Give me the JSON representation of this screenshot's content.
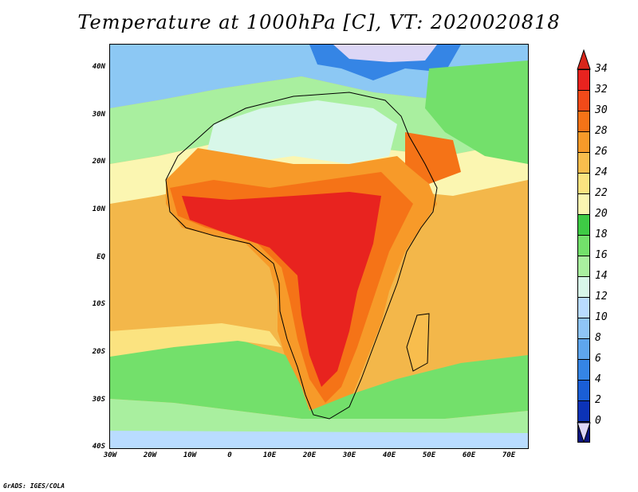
{
  "title": "Temperature at 1000hPa [C], VT: 2020020818",
  "footer": "GrADS: IGES/COLA",
  "axes": {
    "lat_labels": [
      "40N",
      "30N",
      "20N",
      "10N",
      "EQ",
      "10S",
      "20S",
      "30S",
      "40S"
    ],
    "lon_labels": [
      "30W",
      "20W",
      "10W",
      "0",
      "10E",
      "20E",
      "30E",
      "40E",
      "50E",
      "60E",
      "70E"
    ]
  },
  "colorbar": {
    "labels": [
      "34",
      "32",
      "30",
      "28",
      "26",
      "24",
      "22",
      "20",
      "18",
      "16",
      "14",
      "12",
      "10",
      "8",
      "6",
      "4",
      "2",
      "0"
    ],
    "colors": [
      "#e8231f",
      "#f24a19",
      "#f57317",
      "#f79a29",
      "#f8bd4d",
      "#fbe380",
      "#fbf6b1",
      "#3ecb45",
      "#73e06b",
      "#a9ef9f",
      "#d8f7e9",
      "#b9dcff",
      "#8fc5f6",
      "#5ea6ee",
      "#3585e5",
      "#1a5ed6",
      "#0c33b7",
      "#0a1580"
    ],
    "over_color": "#d8261b",
    "under_color": "#dcd6f6"
  },
  "map": {
    "variable": "Temperature",
    "level": "1000hPa",
    "units": "C",
    "valid_time": "2020020818",
    "region": "Africa"
  }
}
